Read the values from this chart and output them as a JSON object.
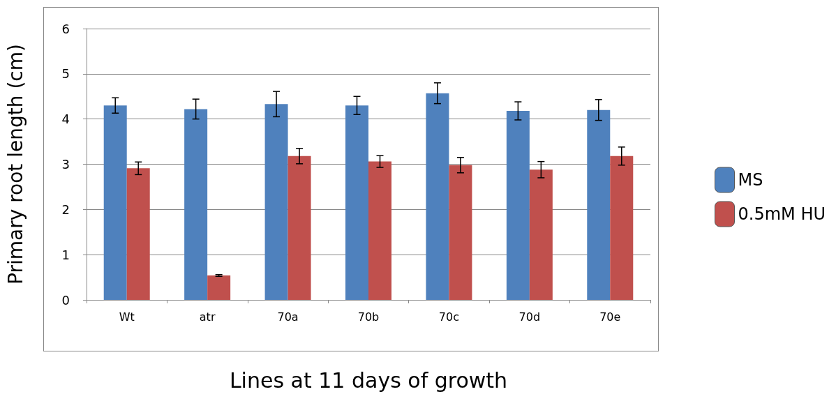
{
  "chart_data": {
    "type": "bar",
    "xlabel": "Lines at 11 days of growth",
    "ylabel": "Primary root length (cm)",
    "categories": [
      "Wt",
      "atr",
      "70a",
      "70b",
      "70c",
      "70d",
      "70e"
    ],
    "series": [
      {
        "name": "MS",
        "color": "#4f81bd",
        "values": [
          4.3,
          4.22,
          4.33,
          4.3,
          4.57,
          4.18,
          4.2
        ],
        "errors": [
          0.17,
          0.22,
          0.28,
          0.2,
          0.23,
          0.2,
          0.23
        ]
      },
      {
        "name": "0.5mM HU",
        "color": "#c0504d",
        "values": [
          2.91,
          0.54,
          3.18,
          3.06,
          2.98,
          2.88,
          3.18
        ],
        "errors": [
          0.14,
          0.02,
          0.17,
          0.13,
          0.17,
          0.18,
          0.2
        ]
      }
    ],
    "ylim": [
      0,
      6
    ],
    "yticks": [
      0,
      1,
      2,
      3,
      4,
      5,
      6
    ],
    "grid": "y",
    "legend": "right"
  }
}
